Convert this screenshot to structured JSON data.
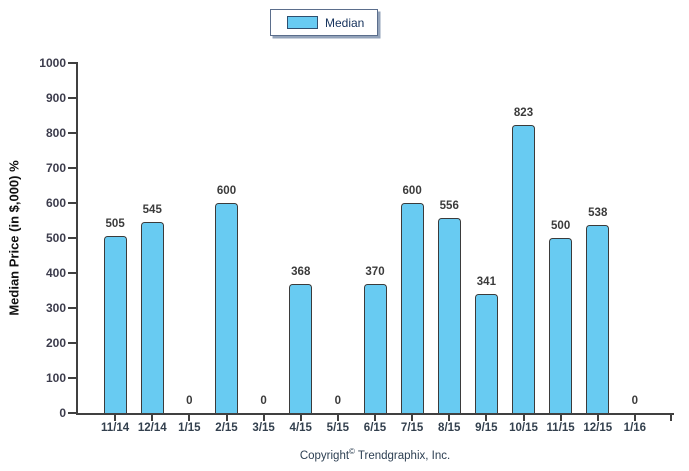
{
  "chart_data": {
    "type": "bar",
    "title": "",
    "xlabel": "",
    "ylabel": "Median Price (in $,000) %",
    "categories": [
      "11/14",
      "12/14",
      "1/15",
      "2/15",
      "3/15",
      "4/15",
      "5/15",
      "6/15",
      "7/15",
      "8/15",
      "9/15",
      "10/15",
      "11/15",
      "12/15",
      "1/16"
    ],
    "series": [
      {
        "name": "Median",
        "values": [
          505,
          545,
          0,
          600,
          0,
          368,
          0,
          370,
          600,
          556,
          341,
          823,
          500,
          538,
          0
        ]
      }
    ],
    "ylim": [
      0,
      1000
    ],
    "yticks": [
      0,
      100,
      200,
      300,
      400,
      500,
      600,
      700,
      800,
      900,
      1000
    ],
    "grid": false,
    "legend_position": "top-center",
    "bar_labels_shown": true,
    "colors": {
      "bar_fill": "#68CBF2",
      "bar_border": "#3b3b3b",
      "axis": "#404040",
      "value_label": "#3b3b3b",
      "tick_label": "#33404e",
      "legend_text": "#16325c",
      "footer_text": "#2e4053"
    }
  },
  "footer": {
    "prefix": "Copyright",
    "symbol": "©",
    "suffix": " Trendgraphix, Inc."
  }
}
